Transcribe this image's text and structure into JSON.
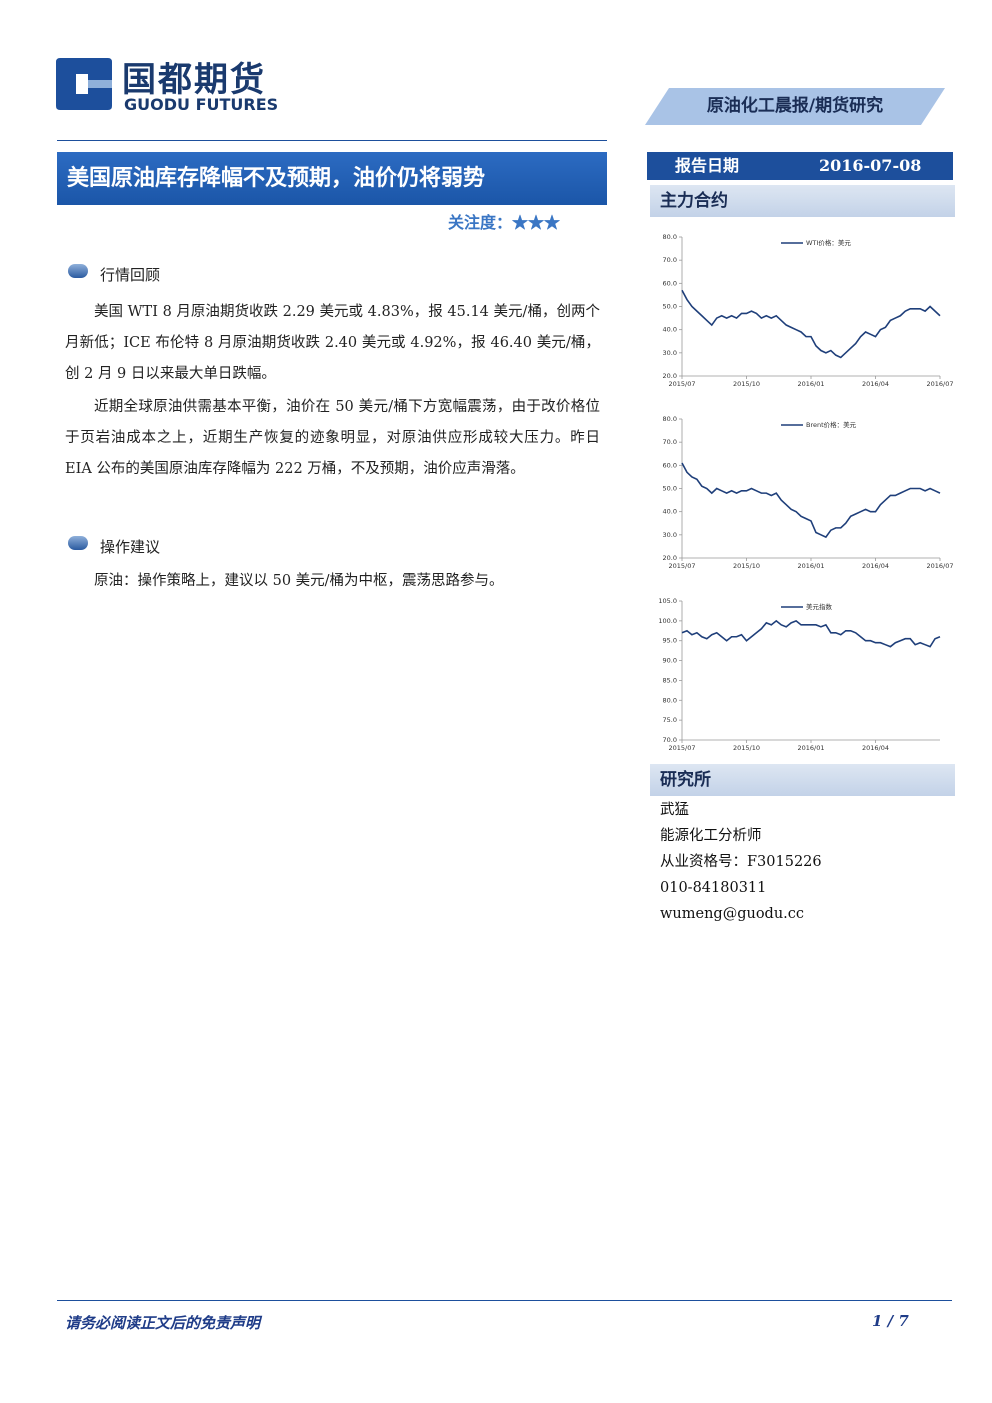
{
  "header": {
    "logo_cn": "国都期货",
    "logo_en": "GUODU FUTURES",
    "section": "原油化工晨报/期货研究"
  },
  "main": {
    "title": "美国原油库存降幅不及预期，油价仍将弱势",
    "attention_label": "关注度：",
    "attention_stars": "★★★",
    "sections": [
      {
        "heading": "行情回顾",
        "paragraphs": [
          "美国 WTI 8 月原油期货收跌 2.29 美元或 4.83%，报 45.14 美元/桶，创两个月新低；ICE 布伦特 8 月原油期货收跌 2.40 美元或 4.92%，报 46.40 美元/桶，创 2 月 9 日以来最大单日跌幅。",
          "近期全球原油供需基本平衡，油价在 50 美元/桶下方宽幅震荡，由于改价格位于页岩油成本之上，近期生产恢复的迹象明显，对原油供应形成较大压力。昨日 EIA 公布的美国原油库存降幅为 222 万桶，不及预期，油价应声滑落。"
        ]
      },
      {
        "heading": "操作建议",
        "paragraphs": [
          "原油：操作策略上，建议以 50 美元/桶为中枢，震荡思路参与。"
        ]
      }
    ]
  },
  "sidebar": {
    "date_label": "报告日期",
    "date": "2016-07-08",
    "contracts_heading": "主力合约",
    "research_heading": "研究所",
    "analyst": [
      "武猛",
      "能源化工分析师",
      "从业资格号：F3015226",
      "010-84180311",
      "wumeng@guodu.cc"
    ]
  },
  "chart_data": [
    {
      "type": "line",
      "categories": [
        "2015/07",
        null,
        null,
        null,
        null,
        null,
        null,
        null,
        null,
        null,
        null,
        null,
        null,
        "2015/10",
        null,
        null,
        null,
        null,
        null,
        null,
        null,
        null,
        null,
        null,
        null,
        null,
        "2016/01",
        null,
        null,
        null,
        null,
        null,
        null,
        null,
        null,
        null,
        null,
        null,
        null,
        "2016/04",
        null,
        null,
        null,
        null,
        null,
        null,
        null,
        null,
        null,
        null,
        null,
        null,
        "2016/07"
      ],
      "series": [
        {
          "name": "WTI价格：美元",
          "color": "#1f3f7a",
          "values": [
            57,
            53,
            50,
            48,
            46,
            44,
            42,
            45,
            46,
            45,
            46,
            45,
            47,
            47,
            48,
            47,
            45,
            46,
            45,
            46,
            44,
            42,
            41,
            40,
            39,
            37,
            37,
            33,
            31,
            30,
            31,
            29,
            28,
            30,
            32,
            34,
            37,
            39,
            38,
            37,
            40,
            41,
            44,
            45,
            46,
            48,
            49,
            49,
            49,
            48,
            50,
            48,
            46
          ]
        }
      ],
      "ylim": [
        20,
        80
      ],
      "yticks": [
        {
          "value": 20,
          "label": "20.0"
        },
        {
          "value": 30,
          "label": "30.0"
        },
        {
          "value": 40,
          "label": "40.0"
        },
        {
          "value": 50,
          "label": "50.0"
        },
        {
          "value": 60,
          "label": "60.0"
        },
        {
          "value": 70,
          "label": "70.0"
        },
        {
          "value": 80,
          "label": "80.0"
        }
      ]
    },
    {
      "type": "line",
      "categories": [
        "2015/07",
        null,
        null,
        null,
        null,
        null,
        null,
        null,
        null,
        null,
        null,
        null,
        null,
        "2015/10",
        null,
        null,
        null,
        null,
        null,
        null,
        null,
        null,
        null,
        null,
        null,
        null,
        "2016/01",
        null,
        null,
        null,
        null,
        null,
        null,
        null,
        null,
        null,
        null,
        null,
        null,
        "2016/04",
        null,
        null,
        null,
        null,
        null,
        null,
        null,
        null,
        null,
        null,
        null,
        null,
        "2016/07"
      ],
      "series": [
        {
          "name": "Brent价格：美元",
          "color": "#1f3f7a",
          "values": [
            61,
            57,
            55,
            54,
            51,
            50,
            48,
            50,
            49,
            48,
            49,
            48,
            49,
            49,
            50,
            49,
            48,
            48,
            47,
            48,
            45,
            43,
            41,
            40,
            38,
            37,
            36,
            31,
            30,
            29,
            32,
            33,
            33,
            35,
            38,
            39,
            40,
            41,
            40,
            40,
            43,
            45,
            47,
            47,
            48,
            49,
            50,
            50,
            50,
            49,
            50,
            49,
            48
          ]
        }
      ],
      "ylim": [
        20,
        80
      ],
      "yticks": [
        {
          "value": 20,
          "label": "20.0"
        },
        {
          "value": 30,
          "label": "30.0"
        },
        {
          "value": 40,
          "label": "40.0"
        },
        {
          "value": 50,
          "label": "50.0"
        },
        {
          "value": 60,
          "label": "60.0"
        },
        {
          "value": 70,
          "label": "70.0"
        },
        {
          "value": 80,
          "label": "80.0"
        }
      ]
    },
    {
      "type": "line",
      "categories": [
        "2015/07",
        null,
        null,
        null,
        null,
        null,
        null,
        null,
        null,
        null,
        null,
        null,
        null,
        "2015/10",
        null,
        null,
        null,
        null,
        null,
        null,
        null,
        null,
        null,
        null,
        null,
        null,
        "2016/01",
        null,
        null,
        null,
        null,
        null,
        null,
        null,
        null,
        null,
        null,
        null,
        null,
        "2016/04",
        null,
        null,
        null,
        null,
        null,
        null,
        null,
        null,
        null,
        null,
        null,
        null,
        null
      ],
      "series": [
        {
          "name": "美元指数",
          "color": "#1f3f7a",
          "values": [
            97,
            97.5,
            96.5,
            97,
            96,
            95.5,
            96.5,
            97,
            96,
            95,
            96,
            96,
            96.5,
            95,
            96,
            97,
            98,
            99.5,
            99,
            100,
            99,
            98.5,
            99.5,
            100,
            99,
            99,
            99,
            99,
            98.5,
            99,
            97,
            97,
            96.5,
            97.5,
            97.5,
            97,
            96,
            95,
            95,
            94.5,
            94.5,
            94,
            93.5,
            94.5,
            95,
            95.5,
            95.5,
            94,
            94.5,
            94,
            93.5,
            95.5,
            96
          ]
        }
      ],
      "ylim": [
        70,
        105
      ],
      "yticks": [
        {
          "value": 70,
          "label": "70.0"
        },
        {
          "value": 75,
          "label": "75.0"
        },
        {
          "value": 80,
          "label": "80.0"
        },
        {
          "value": 85,
          "label": "85.0"
        },
        {
          "value": 90,
          "label": "90.0"
        },
        {
          "value": 95,
          "label": "95.0"
        },
        {
          "value": 100,
          "label": "100.0"
        },
        {
          "value": 105,
          "label": "105.0"
        }
      ]
    }
  ],
  "footer": {
    "disclaimer": "请务必阅读正文后的免责声明",
    "page": "1 / 7"
  }
}
